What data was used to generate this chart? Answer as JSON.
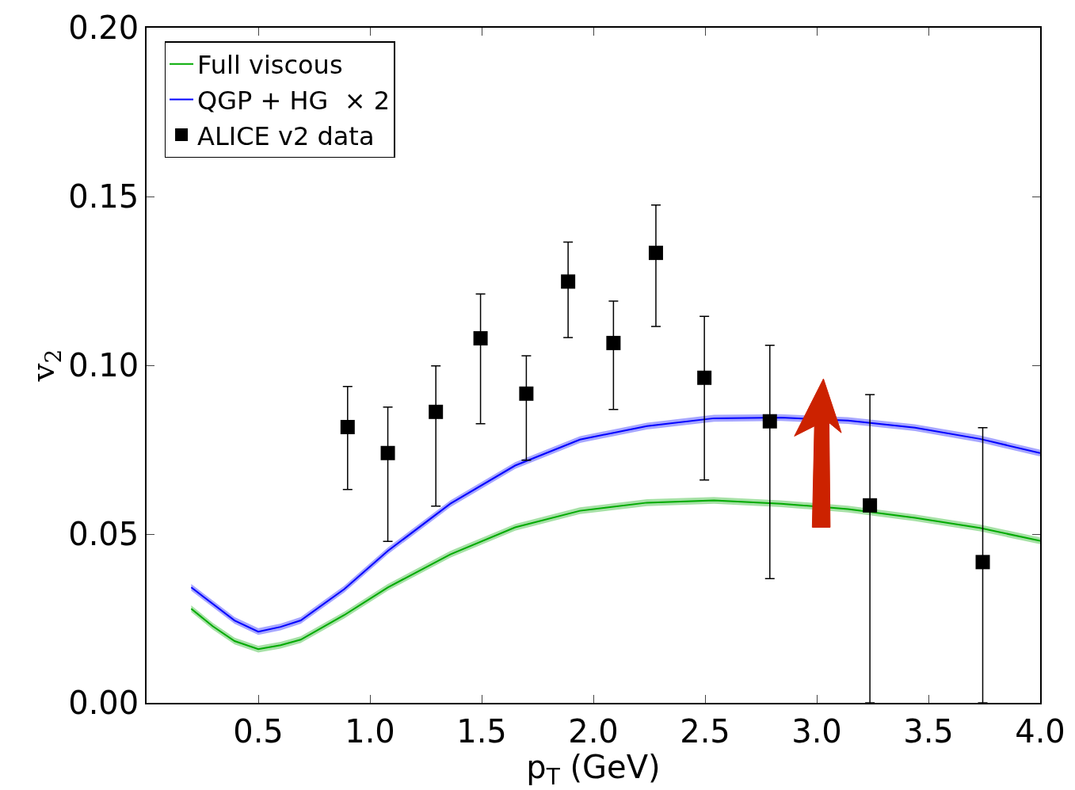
{
  "chart_data": {
    "type": "line",
    "xlabel": "p$_{T}$ (GeV)",
    "ylabel": "v$_{2}$",
    "xlim": [
      0,
      4
    ],
    "ylim": [
      0,
      0.2
    ],
    "xticks": [
      {
        "value": 0.5,
        "label": "0.5"
      },
      {
        "value": 1,
        "label": "1.0"
      },
      {
        "value": 1.5,
        "label": "1.5"
      },
      {
        "value": 2,
        "label": "2.0"
      },
      {
        "value": 2.5,
        "label": "2.5"
      },
      {
        "value": 3,
        "label": "3.0"
      },
      {
        "value": 3.5,
        "label": "3.5"
      },
      {
        "value": 4,
        "label": "4.0"
      }
    ],
    "yticks": [
      {
        "value": 0,
        "label": "0.00"
      },
      {
        "value": 0.05,
        "label": "0.05"
      },
      {
        "value": 0.1,
        "label": "0.10"
      },
      {
        "value": 0.15,
        "label": "0.15"
      },
      {
        "value": 0.2,
        "label": "0.20"
      }
    ],
    "legend": "top left",
    "series": [
      {
        "name": "Full viscous",
        "color": "#00aa00",
        "line_style": "solid",
        "marker": "none",
        "x": [
          0.2,
          0.296,
          0.394,
          0.5,
          0.6,
          0.69,
          0.885,
          1.08,
          1.36,
          1.65,
          1.94,
          2.24,
          2.54,
          2.84,
          3.14,
          3.44,
          3.73,
          4.0
        ],
        "values": [
          0.0279,
          0.0227,
          0.0183,
          0.0159,
          0.0171,
          0.0187,
          0.026,
          0.0342,
          0.044,
          0.052,
          0.0569,
          0.0593,
          0.06,
          0.059,
          0.0574,
          0.0548,
          0.0518,
          0.048
        ],
        "lower": [
          0.0269,
          0.0217,
          0.0173,
          0.0149,
          0.0161,
          0.0177,
          0.025,
          0.0332,
          0.043,
          0.051,
          0.0559,
          0.0583,
          0.059,
          0.058,
          0.0564,
          0.0538,
          0.0508,
          0.047
        ],
        "upper": [
          0.0289,
          0.0237,
          0.0193,
          0.0169,
          0.0181,
          0.0197,
          0.027,
          0.0352,
          0.045,
          0.053,
          0.0579,
          0.0603,
          0.061,
          0.06,
          0.0584,
          0.0558,
          0.0528,
          0.049
        ]
      },
      {
        "name": "QGP + HG  × 2",
        "color": "#0000ff",
        "line_style": "solid",
        "marker": "none",
        "x": [
          0.2,
          0.394,
          0.5,
          0.6,
          0.69,
          0.885,
          1.08,
          1.36,
          1.65,
          1.94,
          2.24,
          2.54,
          2.84,
          3.14,
          3.44,
          3.73,
          4.0
        ],
        "values": [
          0.0342,
          0.0244,
          0.0211,
          0.0225,
          0.0244,
          0.0337,
          0.045,
          0.059,
          0.0703,
          0.078,
          0.082,
          0.0843,
          0.0845,
          0.0836,
          0.0815,
          0.0782,
          0.074
        ],
        "lower": [
          0.0332,
          0.0234,
          0.0201,
          0.0215,
          0.0234,
          0.0327,
          0.044,
          0.058,
          0.0693,
          0.077,
          0.081,
          0.0833,
          0.0835,
          0.0826,
          0.0805,
          0.0772,
          0.073
        ],
        "upper": [
          0.0352,
          0.0254,
          0.0221,
          0.0235,
          0.0254,
          0.0347,
          0.046,
          0.06,
          0.0713,
          0.079,
          0.083,
          0.0853,
          0.0855,
          0.0846,
          0.0825,
          0.0792,
          0.075
        ]
      },
      {
        "name": "ALICE v2 data",
        "type": "scatter",
        "color": "#000000",
        "marker": "square",
        "x": [
          0.9,
          1.08,
          1.295,
          1.495,
          1.7,
          1.887,
          2.09,
          2.28,
          2.497,
          2.79,
          3.238,
          3.743
        ],
        "values": [
          0.0817,
          0.074,
          0.0862,
          0.108,
          0.0916,
          0.1248,
          0.1066,
          0.1333,
          0.0963,
          0.0834,
          0.0585,
          0.0417
        ],
        "errors": [
          [
            0.0632,
            0.0937
          ],
          [
            0.0478,
            0.0876
          ],
          [
            0.0583,
            0.0998
          ],
          [
            0.0827,
            0.1211
          ],
          [
            0.0719,
            0.1028
          ],
          [
            0.1082,
            0.1365
          ],
          [
            0.0869,
            0.119
          ],
          [
            0.1115,
            0.1475
          ],
          [
            0.066,
            0.1145
          ],
          [
            0.0368,
            0.1059
          ],
          [
            0,
            0.0913
          ],
          [
            0,
            0.0815
          ]
        ]
      }
    ]
  }
}
